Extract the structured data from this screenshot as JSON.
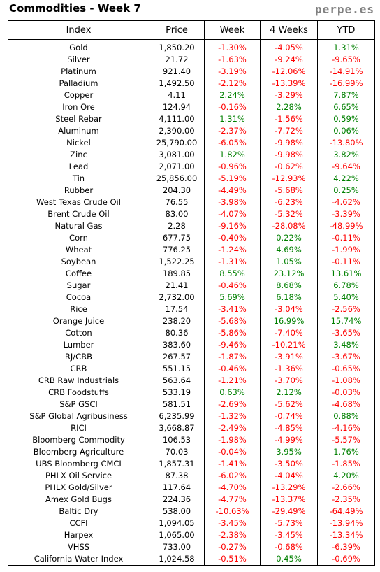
{
  "title": "Commodities - Week 7",
  "brand": "perpe.es",
  "colors": {
    "negative": "#ff0000",
    "positive": "#008000"
  },
  "chart_data": {
    "type": "table",
    "columns": [
      "Index",
      "Price",
      "Week",
      "4 Weeks",
      "YTD"
    ],
    "rows": [
      [
        "Gold",
        "1,850.20",
        "-1.30%",
        "-4.05%",
        "1.31%"
      ],
      [
        "Silver",
        "21.72",
        "-1.63%",
        "-9.24%",
        "-9.65%"
      ],
      [
        "Platinum",
        "921.40",
        "-3.19%",
        "-12.06%",
        "-14.91%"
      ],
      [
        "Palladium",
        "1,492.50",
        "-2.12%",
        "-13.39%",
        "-16.99%"
      ],
      [
        "Copper",
        "4.11",
        "2.24%",
        "-3.29%",
        "7.87%"
      ],
      [
        "Iron Ore",
        "124.94",
        "-0.16%",
        "2.28%",
        "6.65%"
      ],
      [
        "Steel Rebar",
        "4,111.00",
        "1.31%",
        "-1.56%",
        "0.59%"
      ],
      [
        "Aluminum",
        "2,390.00",
        "-2.37%",
        "-7.72%",
        "0.06%"
      ],
      [
        "Nickel",
        "25,790.00",
        "-6.05%",
        "-9.98%",
        "-13.80%"
      ],
      [
        "Zinc",
        "3,081.00",
        "1.82%",
        "-9.98%",
        "3.82%"
      ],
      [
        "Lead",
        "2,071.00",
        "-0.96%",
        "-0.62%",
        "-9.64%"
      ],
      [
        "Tin",
        "25,856.00",
        "-5.19%",
        "-12.93%",
        "4.22%"
      ],
      [
        "Rubber",
        "204.30",
        "-4.49%",
        "-5.68%",
        "0.25%"
      ],
      [
        "West Texas Crude Oil",
        "76.55",
        "-3.98%",
        "-6.23%",
        "-4.62%"
      ],
      [
        "Brent Crude Oil",
        "83.00",
        "-4.07%",
        "-5.32%",
        "-3.39%"
      ],
      [
        "Natural Gas",
        "2.28",
        "-9.16%",
        "-28.08%",
        "-48.99%"
      ],
      [
        "Corn",
        "677.75",
        "-0.40%",
        "0.22%",
        "-0.11%"
      ],
      [
        "Wheat",
        "776.25",
        "-1.24%",
        "4.69%",
        "-1.99%"
      ],
      [
        "Soybean",
        "1,522.25",
        "-1.31%",
        "1.05%",
        "-0.11%"
      ],
      [
        "Coffee",
        "189.85",
        "8.55%",
        "23.12%",
        "13.61%"
      ],
      [
        "Sugar",
        "21.41",
        "-0.46%",
        "8.68%",
        "6.78%"
      ],
      [
        "Cocoa",
        "2,732.00",
        "5.69%",
        "6.18%",
        "5.40%"
      ],
      [
        "Rice",
        "17.54",
        "-3.41%",
        "-3.04%",
        "-2.56%"
      ],
      [
        "Orange Juice",
        "238.20",
        "-5.68%",
        "16.99%",
        "15.74%"
      ],
      [
        "Cotton",
        "80.36",
        "-5.86%",
        "-7.40%",
        "-3.65%"
      ],
      [
        "Lumber",
        "383.60",
        "-9.46%",
        "-10.21%",
        "3.48%"
      ],
      [
        "RJ/CRB",
        "267.57",
        "-1.87%",
        "-3.91%",
        "-3.67%"
      ],
      [
        "CRB",
        "551.15",
        "-0.46%",
        "-1.36%",
        "-0.65%"
      ],
      [
        "CRB Raw Industrials",
        "563.64",
        "-1.21%",
        "-3.70%",
        "-1.08%"
      ],
      [
        "CRB Foodstuffs",
        "533.19",
        "0.63%",
        "2.12%",
        "-0.03%"
      ],
      [
        "S&P GSCI",
        "581.51",
        "-2.69%",
        "-5.62%",
        "-4.68%"
      ],
      [
        "S&P Global Agribusiness",
        "6,235.99",
        "-1.32%",
        "-0.74%",
        "0.88%"
      ],
      [
        "RICI",
        "3,668.87",
        "-2.49%",
        "-4.85%",
        "-4.16%"
      ],
      [
        "Bloomberg Commodity",
        "106.53",
        "-1.98%",
        "-4.99%",
        "-5.57%"
      ],
      [
        "Bloomberg Agriculture",
        "70.03",
        "-0.04%",
        "3.95%",
        "1.76%"
      ],
      [
        "UBS Bloomberg CMCI",
        "1,857.31",
        "-1.41%",
        "-3.50%",
        "-1.85%"
      ],
      [
        "PHLX Oil Service",
        "87.38",
        "-6.02%",
        "-4.04%",
        "4.20%"
      ],
      [
        "PHLX Gold/Silver",
        "117.64",
        "-4.70%",
        "-13.29%",
        "-2.66%"
      ],
      [
        "Amex Gold Bugs",
        "224.36",
        "-4.77%",
        "-13.37%",
        "-2.35%"
      ],
      [
        "Baltic Dry",
        "538.00",
        "-10.63%",
        "-29.49%",
        "-64.49%"
      ],
      [
        "CCFI",
        "1,094.05",
        "-3.45%",
        "-5.73%",
        "-13.94%"
      ],
      [
        "Harpex",
        "1,065.00",
        "-2.38%",
        "-3.45%",
        "-13.34%"
      ],
      [
        "VHSS",
        "733.00",
        "-0.27%",
        "-0.68%",
        "-6.39%"
      ],
      [
        "California Water Index",
        "1,024.58",
        "-0.51%",
        "0.45%",
        "-0.69%"
      ]
    ]
  }
}
